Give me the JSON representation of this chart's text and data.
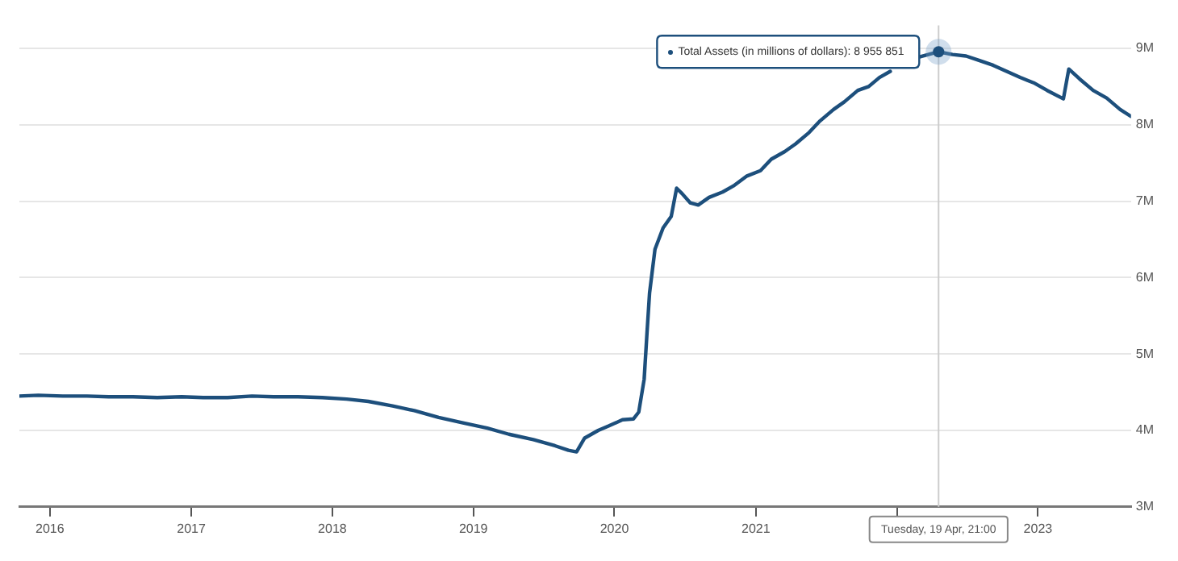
{
  "chart_data": {
    "type": "line",
    "x": [
      "2015-10-14",
      "2015-12-02",
      "2016-02-03",
      "2016-04-06",
      "2016-06-01",
      "2016-08-03",
      "2016-10-05",
      "2016-12-07",
      "2017-02-01",
      "2017-04-05",
      "2017-06-07",
      "2017-08-02",
      "2017-10-04",
      "2017-12-06",
      "2018-02-07",
      "2018-04-04",
      "2018-06-06",
      "2018-08-01",
      "2018-10-03",
      "2018-12-05",
      "2019-02-06",
      "2019-04-03",
      "2019-06-05",
      "2019-07-31",
      "2019-09-04",
      "2019-09-25",
      "2019-10-16",
      "2019-11-20",
      "2019-12-18",
      "2020-01-22",
      "2020-02-19",
      "2020-03-04",
      "2020-03-18",
      "2020-03-25",
      "2020-04-01",
      "2020-04-15",
      "2020-05-06",
      "2020-05-27",
      "2020-06-10",
      "2020-06-24",
      "2020-07-15",
      "2020-08-05",
      "2020-09-02",
      "2020-10-07",
      "2020-11-04",
      "2020-12-09",
      "2021-01-13",
      "2021-02-10",
      "2021-03-17",
      "2021-04-14",
      "2021-05-19",
      "2021-06-16",
      "2021-07-21",
      "2021-08-18",
      "2021-09-22",
      "2021-10-20",
      "2021-11-17",
      "2021-12-15",
      "2022-01-19",
      "2022-02-23",
      "2022-04-19",
      "2022-05-25",
      "2022-06-29",
      "2022-08-03",
      "2022-09-07",
      "2022-10-12",
      "2022-11-16",
      "2022-12-21",
      "2023-01-25",
      "2023-03-08",
      "2023-03-22",
      "2023-04-19",
      "2023-05-24",
      "2023-06-28",
      "2023-08-02",
      "2023-08-30"
    ],
    "series": [
      {
        "name": "Total Assets (in millions of dollars):",
        "color": "#1d4f7c",
        "values": [
          4450000,
          4460000,
          4450000,
          4450000,
          4440000,
          4440000,
          4430000,
          4440000,
          4430000,
          4430000,
          4450000,
          4440000,
          4440000,
          4430000,
          4410000,
          4380000,
          4320000,
          4260000,
          4170000,
          4100000,
          4030000,
          3950000,
          3880000,
          3800000,
          3740000,
          3720000,
          3900000,
          4000000,
          4060000,
          4140000,
          4150000,
          4240000,
          4670000,
          5250000,
          5800000,
          6370000,
          6650000,
          6800000,
          7170000,
          7100000,
          6980000,
          6950000,
          7050000,
          7120000,
          7200000,
          7330000,
          7400000,
          7550000,
          7650000,
          7750000,
          7900000,
          8050000,
          8200000,
          8300000,
          8450000,
          8500000,
          8620000,
          8700000,
          null,
          8880000,
          8955851,
          8920000,
          8900000,
          8840000,
          8780000,
          8700000,
          8620000,
          8550000,
          8450000,
          8340000,
          8730000,
          8600000,
          8450000,
          8350000,
          8200000,
          8110000
        ],
        "value_labels": [
          null,
          null,
          null,
          null,
          null,
          null,
          null,
          null,
          null,
          null,
          null,
          null,
          null,
          null,
          null,
          null,
          null,
          null,
          null,
          null,
          null,
          null,
          null,
          null,
          null,
          null,
          null,
          null,
          null,
          null,
          null,
          null,
          null,
          null,
          null,
          null,
          null,
          null,
          null,
          null,
          null,
          null,
          null,
          null,
          null,
          null,
          null,
          null,
          null,
          null,
          null,
          null,
          null,
          null,
          null,
          null,
          null,
          null,
          null,
          null,
          "8 955 851",
          null,
          null,
          null,
          null,
          null,
          null,
          null,
          null,
          null,
          null,
          null,
          null,
          null,
          null,
          null
        ]
      }
    ],
    "xlim": [
      "2015-10-14",
      "2023-08-30"
    ],
    "xticks": [
      "2016",
      "2017",
      "2018",
      "2019",
      "2020",
      "2021",
      {
        "value": "2022",
        "label": null
      },
      "2023"
    ],
    "ylim": [
      3000000,
      9300000
    ],
    "yticks": [
      {
        "value": 3000000,
        "label": "3M"
      },
      {
        "value": 4000000,
        "label": "4M"
      },
      {
        "value": 5000000,
        "label": "5M"
      },
      {
        "value": 6000000,
        "label": "6M"
      },
      {
        "value": 7000000,
        "label": "7M"
      },
      {
        "value": 8000000,
        "label": "8M"
      },
      {
        "value": 9000000,
        "label": "9M"
      }
    ],
    "grid": "y",
    "legend": false,
    "marker": "none",
    "line_style": "solid",
    "ref_lines": [
      {
        "axis": "x",
        "value": "2022-04-19",
        "label": "Tuesday, 19 Apr, 21:00",
        "color": "#cccccc"
      }
    ]
  }
}
